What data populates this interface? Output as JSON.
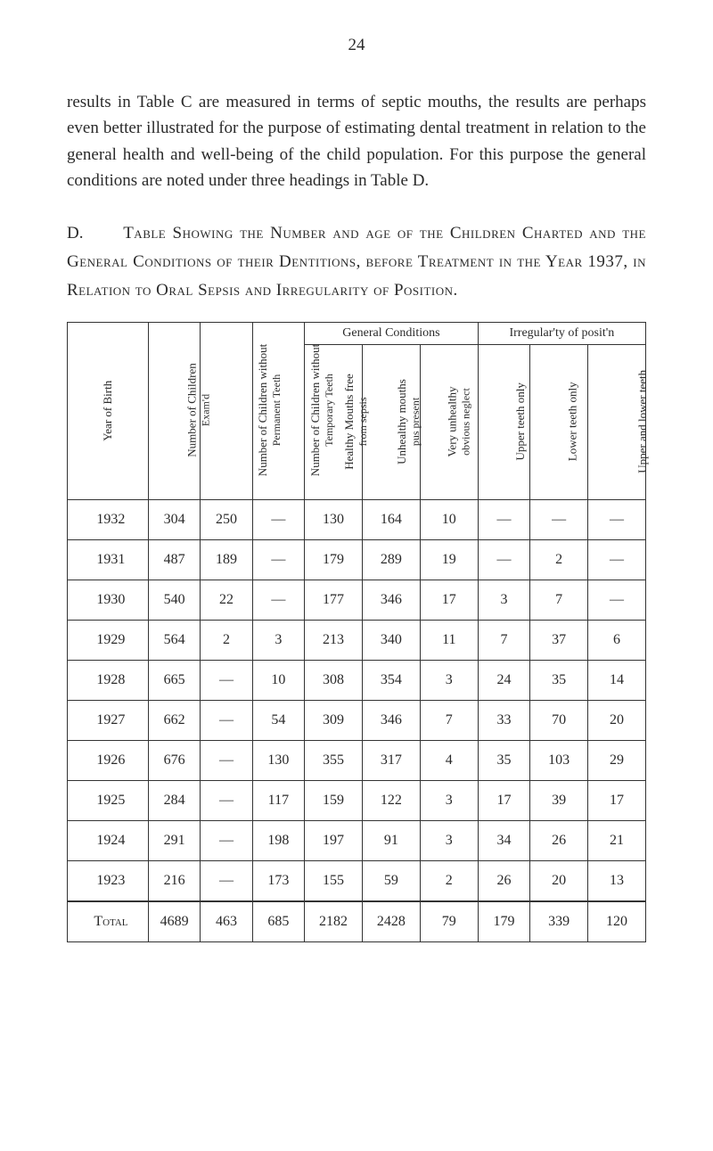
{
  "page_number": "24",
  "paragraph": "results in Table C are measured in terms of septic mouths, the results are perhaps even better illustrated for the purpose of estimating dental treatment in relation to the general health and well-being of the child population. For this purpose the general conditions are noted under three headings in Table D.",
  "caption_prefix": "D.",
  "caption_text": "Table Showing the Number and age of the Children Charted and the General Conditions of their Dentitions, before Treatment in the Year 1937, in Relation to Oral Sepsis and Irregularity of Position.",
  "table": {
    "group_headers": {
      "general": "General Conditions",
      "irregularity": "Irregular'ty of posit'n"
    },
    "columns": [
      "Year of Birth",
      "Number of Children Exam'd",
      "Number of Children without Permanent Teeth",
      "Number of Children without Temporary Teeth",
      "Healthy Mouths free from sepsis",
      "Unhealthy mouths pus present",
      "Very unhealthy obvious neglect",
      "Upper teeth only",
      "Lower teeth only",
      "Upper and lower teeth"
    ],
    "col_short": {
      "c0": "Year of Birth",
      "c1a": "Number of Children",
      "c1b": "Exam'd",
      "c2a": "Number of Children without",
      "c2b": "Permanent Teeth",
      "c3a": "Number of Children without",
      "c3b": "Temporary Teeth",
      "c4a": "Healthy Mouths free",
      "c4b": "from sepsis",
      "c5a": "Unhealthy mouths",
      "c5b": "pus present",
      "c6a": "Very unhealthy",
      "c6b": "obvious neglect",
      "c7": "Upper teeth only",
      "c8": "Lower teeth only",
      "c9": "Upper and lower teeth"
    },
    "rows": [
      [
        "1932",
        "304",
        "250",
        "—",
        "130",
        "164",
        "10",
        "—",
        "—",
        "—"
      ],
      [
        "1931",
        "487",
        "189",
        "—",
        "179",
        "289",
        "19",
        "—",
        "2",
        "—"
      ],
      [
        "1930",
        "540",
        "22",
        "—",
        "177",
        "346",
        "17",
        "3",
        "7",
        "—"
      ],
      [
        "1929",
        "564",
        "2",
        "3",
        "213",
        "340",
        "11",
        "7",
        "37",
        "6"
      ],
      [
        "1928",
        "665",
        "—",
        "10",
        "308",
        "354",
        "3",
        "24",
        "35",
        "14"
      ],
      [
        "1927",
        "662",
        "—",
        "54",
        "309",
        "346",
        "7",
        "33",
        "70",
        "20"
      ],
      [
        "1926",
        "676",
        "—",
        "130",
        "355",
        "317",
        "4",
        "35",
        "103",
        "29"
      ],
      [
        "1925",
        "284",
        "—",
        "117",
        "159",
        "122",
        "3",
        "17",
        "39",
        "17"
      ],
      [
        "1924",
        "291",
        "—",
        "198",
        "197",
        "91",
        "3",
        "34",
        "26",
        "21"
      ],
      [
        "1923",
        "216",
        "—",
        "173",
        "155",
        "59",
        "2",
        "26",
        "20",
        "13"
      ]
    ],
    "total_label": "Total",
    "total_row": [
      "4689",
      "463",
      "685",
      "2182",
      "2428",
      "79",
      "179",
      "339",
      "120"
    ]
  }
}
